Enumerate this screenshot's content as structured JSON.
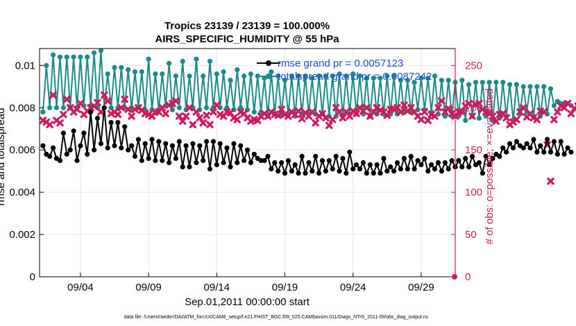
{
  "chart_data": {
    "type": "line",
    "title_line1": "Tropics 23139 / 23139 = 100.000%",
    "title_line2": "AIRS_SPECIFIC_HUMIDITY @ 55 hPa",
    "xlabel": "Sep.01,2011 00:00:00 start",
    "ylabel_left": "rmse and totalspread",
    "ylabel_right": "# of obs: o=possible; ×=evaluated",
    "left_ylim": [
      0,
      0.0108
    ],
    "right_ylim": [
      0,
      270
    ],
    "xlim": [
      0,
      30.5
    ],
    "left_ticks": [
      "0",
      "0.002",
      "0.004",
      "0.006",
      "0.008",
      "0.01"
    ],
    "left_tick_values": [
      0,
      0.002,
      0.004,
      0.006,
      0.008,
      0.01
    ],
    "right_ticks": [
      "0",
      "50",
      "100",
      "150",
      "200",
      "250"
    ],
    "right_tick_values": [
      0,
      50,
      100,
      150,
      200,
      250
    ],
    "x_ticks": [
      "09/04",
      "09/09",
      "09/14",
      "09/19",
      "09/24",
      "09/29"
    ],
    "x_tick_values": [
      3,
      8,
      13,
      18,
      23,
      28
    ],
    "legend": [
      {
        "label": "rmse grand pr = 0.0057123"
      },
      {
        "label": "totalspread grand pr = 0.0087242"
      }
    ],
    "colors": {
      "rmse": "#000000",
      "spread": "#1a8a8a",
      "obs": "#d0185a",
      "grid": "#e6e6e6"
    },
    "series": [
      {
        "name": "rmse",
        "dt": 0.25,
        "values": [
          0.0062,
          0.0058,
          0.0057,
          0.0061,
          0.0056,
          0.0055,
          0.0068,
          0.0058,
          0.006,
          0.0069,
          0.0055,
          0.0062,
          0.0068,
          0.0058,
          0.0078,
          0.006,
          0.0075,
          0.0063,
          0.008,
          0.0061,
          0.0073,
          0.0062,
          0.0073,
          0.0061,
          0.0071,
          0.006,
          0.0062,
          0.0057,
          0.0065,
          0.0055,
          0.0063,
          0.0056,
          0.0065,
          0.0055,
          0.0064,
          0.0055,
          0.0063,
          0.0054,
          0.0062,
          0.0056,
          0.0064,
          0.0052,
          0.0062,
          0.0052,
          0.0063,
          0.0054,
          0.0062,
          0.0055,
          0.0064,
          0.0051,
          0.0064,
          0.0053,
          0.0063,
          0.0054,
          0.0061,
          0.0052,
          0.0063,
          0.0054,
          0.0062,
          0.0055,
          0.006,
          0.0054,
          0.0058,
          0.0056,
          0.0055,
          0.0055,
          0.0057,
          0.0051,
          0.0054,
          0.005,
          0.0054,
          0.0049,
          0.0055,
          0.005,
          0.0053,
          0.0049,
          0.0057,
          0.0049,
          0.0054,
          0.005,
          0.0057,
          0.0049,
          0.0055,
          0.005,
          0.0055,
          0.0051,
          0.0057,
          0.005,
          0.0056,
          0.0049,
          0.0059,
          0.0051,
          0.0053,
          0.0051,
          0.0054,
          0.0049,
          0.0053,
          0.0049,
          0.0053,
          0.0049,
          0.0056,
          0.005,
          0.0052,
          0.005,
          0.0054,
          0.0051,
          0.0056,
          0.0051,
          0.0057,
          0.0051,
          0.0055,
          0.0053,
          0.0056,
          0.005,
          0.0053,
          0.0051,
          0.0054,
          0.005,
          0.0054,
          0.0051,
          0.0055,
          0.0052,
          0.0055,
          0.0052,
          0.0056,
          0.0052,
          0.0057,
          0.0053,
          0.0054,
          0.0049,
          0.0057,
          0.0053,
          0.0056,
          0.0058,
          0.0057,
          0.0061,
          0.0059,
          0.0063,
          0.0061,
          0.0064,
          0.0062,
          0.0061,
          0.0063,
          0.0061,
          0.0065,
          0.0059,
          0.0062,
          0.0059,
          0.0065,
          0.0059,
          0.0064,
          0.0058,
          0.0064,
          0.0058,
          0.0061,
          0.0059
        ]
      },
      {
        "name": "totalspread",
        "dt": 0.25,
        "values": [
          0.0078,
          0.01,
          0.008,
          0.0105,
          0.008,
          0.0104,
          0.008,
          0.0104,
          0.008,
          0.0104,
          0.008,
          0.0104,
          0.0081,
          0.0104,
          0.0081,
          0.0106,
          0.008,
          0.0107,
          0.008,
          0.0096,
          0.008,
          0.0099,
          0.008,
          0.0099,
          0.008,
          0.0098,
          0.0079,
          0.0097,
          0.008,
          0.0097,
          0.0079,
          0.0103,
          0.0079,
          0.0096,
          0.0079,
          0.0096,
          0.0081,
          0.0101,
          0.0079,
          0.0095,
          0.008,
          0.0102,
          0.0079,
          0.0095,
          0.008,
          0.0103,
          0.0079,
          0.0095,
          0.008,
          0.0102,
          0.008,
          0.0096,
          0.008,
          0.0097,
          0.008,
          0.0093,
          0.0079,
          0.0098,
          0.008,
          0.0095,
          0.0079,
          0.0096,
          0.0078,
          0.0095,
          0.0078,
          0.0094,
          0.0076,
          0.0097,
          0.0077,
          0.0095,
          0.0077,
          0.0093,
          0.0077,
          0.0095,
          0.0076,
          0.0095,
          0.0077,
          0.0095,
          0.0077,
          0.0094,
          0.0077,
          0.0095,
          0.0077,
          0.0095,
          0.0076,
          0.0095,
          0.0076,
          0.0096,
          0.0076,
          0.0095,
          0.0077,
          0.0096,
          0.0077,
          0.0095,
          0.0077,
          0.0094,
          0.0076,
          0.0094,
          0.0077,
          0.0094,
          0.0077,
          0.0095,
          0.0077,
          0.0095,
          0.0077,
          0.0093,
          0.0078,
          0.0093,
          0.0078,
          0.0092,
          0.0079,
          0.0094,
          0.0079,
          0.0094,
          0.0078,
          0.0095,
          0.0077,
          0.0093,
          0.0076,
          0.0093,
          0.0076,
          0.0092,
          0.0076,
          0.0093,
          0.0074,
          0.0091,
          0.0076,
          0.0092,
          0.0075,
          0.0092,
          0.0076,
          0.0092,
          0.0074,
          0.0092,
          0.0075,
          0.0092,
          0.0076,
          0.0091,
          0.0074,
          0.0091,
          0.0077,
          0.009,
          0.0078,
          0.009,
          0.0076,
          0.009,
          0.0076,
          0.009,
          0.0077,
          0.0089,
          0.0081,
          0.0083,
          0.0082,
          0.0082,
          0.0082,
          0.0081
        ]
      },
      {
        "name": "obs_evaluated",
        "dt": 0.25,
        "values": [
          185,
          183,
          180,
          215,
          185,
          182,
          192,
          210,
          200,
          195,
          198,
          205,
          192,
          196,
          200,
          202,
          206,
          195,
          215,
          208,
          193,
          195,
          192,
          200,
          210,
          198,
          190,
          198,
          200,
          197,
          193,
          192,
          190,
          195,
          195,
          200,
          193,
          203,
          205,
          208,
          190,
          184,
          190,
          200,
          180,
          195,
          188,
          182,
          191,
          180,
          195,
          203,
          192,
          190,
          195,
          194,
          188,
          186,
          195,
          193,
          188,
          184,
          186,
          185,
          190,
          193,
          190,
          195,
          192,
          191,
          198,
          192,
          190,
          195,
          192,
          196,
          187,
          194,
          190,
          195,
          182,
          190,
          193,
          188,
          179,
          186,
          200,
          195,
          188,
          195,
          190,
          196,
          193,
          200,
          196,
          200,
          190,
          195,
          200,
          197,
          195,
          191,
          198,
          198,
          200,
          195,
          203,
          196,
          200,
          195,
          190,
          186,
          195,
          185,
          192,
          190,
          200,
          208,
          195,
          199,
          193,
          190,
          195,
          195,
          202,
          205,
          190,
          204,
          205,
          198,
          195,
          194,
          190,
          184,
          192,
          193,
          188,
          180,
          183,
          186,
          195,
          200,
          189,
          193,
          188,
          186,
          196,
          195,
          156,
          113,
          186,
          195,
          202,
          200,
          205,
          193,
          199,
          202,
          196,
          200
        ]
      }
    ]
  },
  "footer": {
    "text": "data file: /Users/raeder/DAI/ATM_forcXX/CAM6_setup/f.e21.FHIST_BGC.f09_025.CAM6assim.011/Diags_NTrS_2011-09/obs_diag_output.nc"
  }
}
